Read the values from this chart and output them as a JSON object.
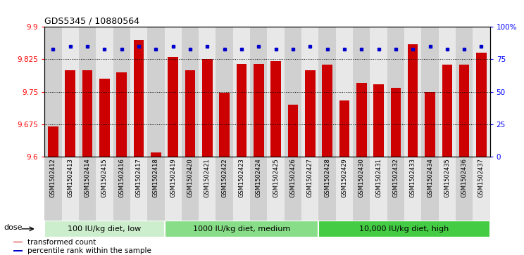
{
  "title": "GDS5345 / 10880564",
  "samples": [
    "GSM1502412",
    "GSM1502413",
    "GSM1502414",
    "GSM1502415",
    "GSM1502416",
    "GSM1502417",
    "GSM1502418",
    "GSM1502419",
    "GSM1502420",
    "GSM1502421",
    "GSM1502422",
    "GSM1502423",
    "GSM1502424",
    "GSM1502425",
    "GSM1502426",
    "GSM1502427",
    "GSM1502428",
    "GSM1502429",
    "GSM1502430",
    "GSM1502431",
    "GSM1502432",
    "GSM1502433",
    "GSM1502434",
    "GSM1502435",
    "GSM1502436",
    "GSM1502437"
  ],
  "bar_values": [
    9.67,
    9.8,
    9.8,
    9.78,
    9.795,
    9.87,
    9.61,
    9.83,
    9.8,
    9.825,
    9.748,
    9.815,
    9.815,
    9.82,
    9.72,
    9.8,
    9.812,
    9.73,
    9.77,
    9.768,
    9.76,
    9.86,
    9.75,
    9.812,
    9.812,
    9.84
  ],
  "percentile_values": [
    83,
    85,
    85,
    83,
    83,
    85,
    83,
    85,
    83,
    85,
    83,
    83,
    85,
    83,
    83,
    85,
    83,
    83,
    83,
    83,
    83,
    83,
    85,
    83,
    83,
    85
  ],
  "ylim_left": [
    9.6,
    9.9
  ],
  "yticks_left": [
    9.6,
    9.675,
    9.75,
    9.825,
    9.9
  ],
  "ytick_labels_left": [
    "9.6",
    "9.675",
    "9.75",
    "9.825",
    "9.9"
  ],
  "ylim_right": [
    0,
    100
  ],
  "yticks_right": [
    0,
    25,
    50,
    75,
    100
  ],
  "ytick_labels_right": [
    "0",
    "25",
    "50",
    "75",
    "100%"
  ],
  "bar_color": "#cc0000",
  "dot_color": "#0000cc",
  "col_bg_odd": "#d0d0d0",
  "col_bg_even": "#e8e8e8",
  "plot_bg_color": "#ffffff",
  "groups": [
    {
      "label": "100 IU/kg diet, low",
      "start": 0,
      "end": 7
    },
    {
      "label": "1000 IU/kg diet, medium",
      "start": 7,
      "end": 16
    },
    {
      "label": "10,000 IU/kg diet, high",
      "start": 16,
      "end": 26
    }
  ],
  "group_color_light": "#cceecc",
  "group_color_mid": "#88dd88",
  "group_color_dark": "#44cc44",
  "dose_label": "dose",
  "legend_items": [
    {
      "label": "transformed count",
      "color": "#cc0000"
    },
    {
      "label": "percentile rank within the sample",
      "color": "#0000cc"
    }
  ]
}
